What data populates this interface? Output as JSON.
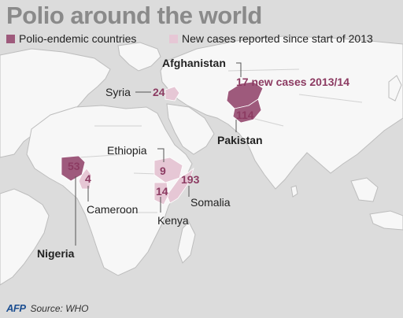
{
  "title": "Polio around the world",
  "legend": [
    {
      "label": "Polio-endemic countries",
      "color": "#9e5a7c"
    },
    {
      "label": "New cases reported since start of 2013",
      "color": "#e6c7d5"
    }
  ],
  "countries": {
    "afghanistan": {
      "name": "Afghanistan",
      "cases": "17 new cases 2013/14",
      "category": "endemic"
    },
    "pakistan": {
      "name": "Pakistan",
      "cases": "114",
      "category": "endemic"
    },
    "nigeria": {
      "name": "Nigeria",
      "cases": "53",
      "category": "endemic"
    },
    "syria": {
      "name": "Syria",
      "cases": "24",
      "category": "new"
    },
    "ethiopia": {
      "name": "Ethiopia",
      "cases": "9",
      "category": "new"
    },
    "somalia": {
      "name": "Somalia",
      "cases": "193",
      "category": "new"
    },
    "kenya": {
      "name": "Kenya",
      "cases": "14",
      "category": "new"
    },
    "cameroon": {
      "name": "Cameroon",
      "cases": "4",
      "category": "new"
    }
  },
  "colors": {
    "sea": "#dcdcdc",
    "land": "#f7f7f7",
    "border": "#bdbdbd",
    "endemic": "#9e5a7c",
    "new_cases": "#e6c7d5",
    "number_text": "#8c3b62"
  },
  "footer": {
    "logo": "AFP",
    "source": "Source: WHO"
  }
}
